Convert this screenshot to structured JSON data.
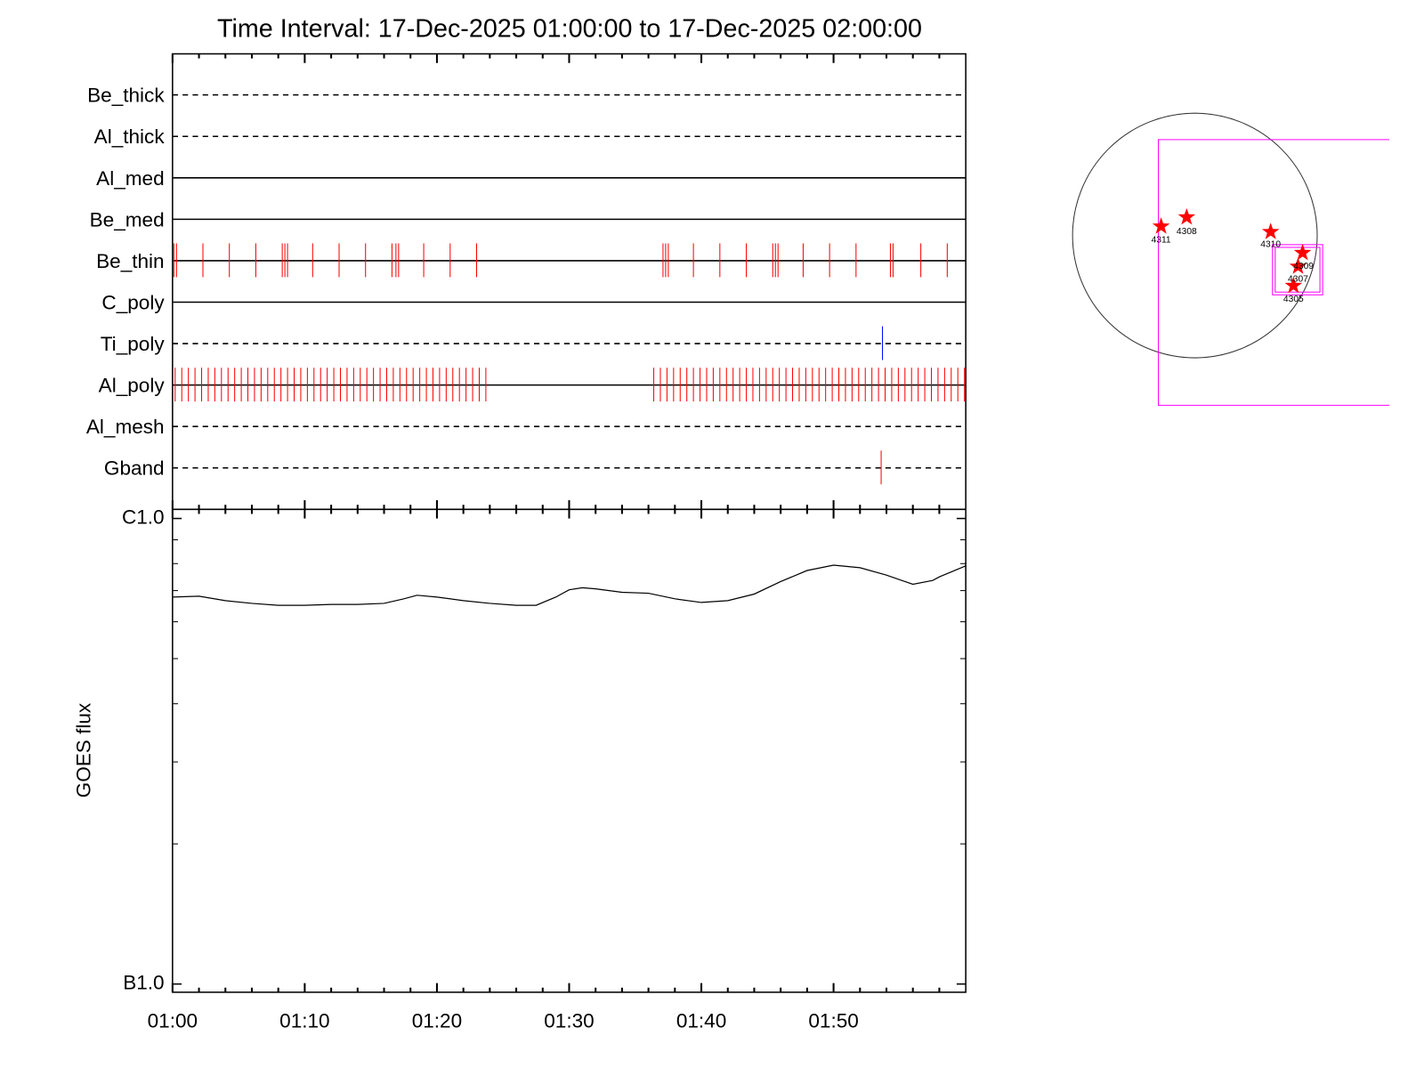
{
  "title": "Time Interval: 17-Dec-2025 01:00:00 to 17-Dec-2025 02:00:00",
  "filters": {
    "type": "timeline",
    "xlim": [
      0,
      60
    ],
    "rows": [
      {
        "name": "Be_thick",
        "style": "dashed"
      },
      {
        "name": "Al_thick",
        "style": "dashed"
      },
      {
        "name": "Al_med",
        "style": "solid"
      },
      {
        "name": "Be_med",
        "style": "solid"
      },
      {
        "name": "Be_thin",
        "style": "solid",
        "color": "#ff0000",
        "events": [
          0.1,
          0.3,
          2.3,
          4.3,
          6.3,
          8.3,
          8.5,
          8.7,
          10.6,
          12.6,
          14.6,
          16.6,
          16.9,
          17.1,
          19.0,
          21.0,
          23.0,
          37.1,
          37.3,
          37.5,
          39.4,
          41.4,
          43.4,
          45.4,
          45.6,
          45.8,
          47.7,
          49.7,
          51.7,
          54.3,
          54.5,
          56.6,
          58.6
        ]
      },
      {
        "name": "C_poly",
        "style": "solid"
      },
      {
        "name": "Ti_poly",
        "style": "dashed",
        "color": "#0000ff",
        "events": [
          53.7
        ]
      },
      {
        "name": "Al_poly",
        "style": "solid",
        "color": "#ff0000",
        "events": [
          0.2,
          0.7,
          1.2,
          1.7,
          2.2,
          2.7,
          3.2,
          3.7,
          4.2,
          4.7,
          5.2,
          5.7,
          6.2,
          6.7,
          7.2,
          7.7,
          8.2,
          8.7,
          9.2,
          9.7,
          10.2,
          10.7,
          11.2,
          11.7,
          12.2,
          12.7,
          13.2,
          13.7,
          14.2,
          14.7,
          15.2,
          15.7,
          16.2,
          16.7,
          17.2,
          17.7,
          18.2,
          18.7,
          19.2,
          19.7,
          20.2,
          20.7,
          21.2,
          21.7,
          22.2,
          22.7,
          23.2,
          23.7,
          36.4,
          36.9,
          37.4,
          37.9,
          38.4,
          38.9,
          39.4,
          39.9,
          40.4,
          40.9,
          41.4,
          41.9,
          42.4,
          42.9,
          43.4,
          43.9,
          44.4,
          44.9,
          45.4,
          45.9,
          46.4,
          46.9,
          47.4,
          47.9,
          48.4,
          48.9,
          49.4,
          49.9,
          50.4,
          50.9,
          51.4,
          51.9,
          52.4,
          52.9,
          53.4,
          53.9,
          54.4,
          54.9,
          55.4,
          55.9,
          56.4,
          56.9,
          57.4,
          57.9,
          58.4,
          58.9,
          59.4,
          59.9
        ]
      },
      {
        "name": "Al_mesh",
        "style": "dashed"
      },
      {
        "name": "Gband",
        "style": "dashed",
        "color": "#ff0000",
        "events": [
          53.6
        ]
      }
    ]
  },
  "goes": {
    "type": "line",
    "ylabel": "GOES flux",
    "log_scale": true,
    "color": "#000000",
    "xlim": [
      0,
      60
    ],
    "xticks": [
      {
        "value": 0,
        "label": "01:00"
      },
      {
        "value": 10,
        "label": "01:10"
      },
      {
        "value": 20,
        "label": "01:20"
      },
      {
        "value": 30,
        "label": "01:30"
      },
      {
        "value": 40,
        "label": "01:40"
      },
      {
        "value": 50,
        "label": "01:50"
      }
    ],
    "xminor": [
      2,
      4,
      6,
      8,
      12,
      14,
      16,
      18,
      22,
      24,
      26,
      28,
      32,
      34,
      36,
      38,
      42,
      44,
      46,
      48,
      52,
      54,
      56,
      58
    ],
    "ylim": [
      1e-07,
      1e-06
    ],
    "yticks": [
      {
        "value": 1e-07,
        "label": "B1.0"
      },
      {
        "value": 1e-06,
        "label": "C1.0"
      }
    ],
    "yminor": [
      2e-07,
      3e-07,
      4e-07,
      5e-07,
      6e-07,
      7e-07,
      8e-07,
      9e-07
    ],
    "x": [
      0,
      2,
      4,
      6,
      8,
      10,
      12,
      14,
      16,
      17.5,
      18.5,
      20,
      22,
      24,
      26,
      27.5,
      29,
      30,
      31,
      32,
      34,
      36,
      38,
      40,
      42,
      44,
      46,
      48,
      50,
      52,
      54,
      56,
      57.5,
      58,
      60
    ],
    "values": [
      6.78e-07,
      6.81e-07,
      6.66e-07,
      6.57e-07,
      6.51e-07,
      6.51e-07,
      6.54e-07,
      6.54e-07,
      6.57e-07,
      6.72e-07,
      6.84e-07,
      6.78e-07,
      6.66e-07,
      6.57e-07,
      6.51e-07,
      6.51e-07,
      6.78e-07,
      7.03e-07,
      7.1e-07,
      7.06e-07,
      6.94e-07,
      6.91e-07,
      6.72e-07,
      6.6e-07,
      6.66e-07,
      6.88e-07,
      7.32e-07,
      7.73e-07,
      7.94e-07,
      7.84e-07,
      7.56e-07,
      7.22e-07,
      7.36e-07,
      7.49e-07,
      7.91e-07
    ]
  },
  "sun_map": {
    "regions": [
      "4311",
      "4308",
      "4310",
      "4309",
      "4307",
      "4305"
    ]
  }
}
